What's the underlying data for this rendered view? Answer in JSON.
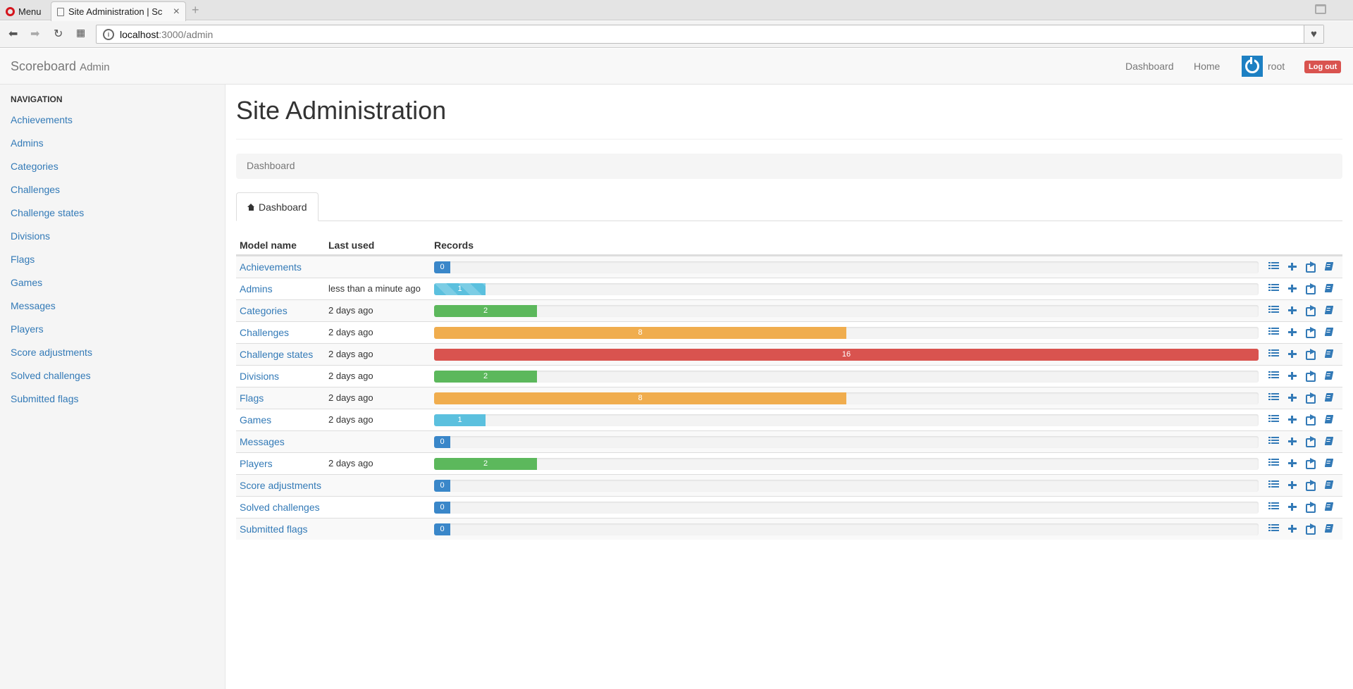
{
  "browser": {
    "menu_label": "Menu",
    "tab_title": "Site Administration | Sc",
    "url_host": "localhost",
    "url_path": ":3000/admin"
  },
  "navbar": {
    "brand": "Scoreboard",
    "brand_sub": "Admin",
    "links": [
      "Dashboard",
      "Home"
    ],
    "user": "root",
    "logout": "Log out"
  },
  "sidebar": {
    "heading": "NAVIGATION",
    "items": [
      "Achievements",
      "Admins",
      "Categories",
      "Challenges",
      "Challenge states",
      "Divisions",
      "Flags",
      "Games",
      "Messages",
      "Players",
      "Score adjustments",
      "Solved challenges",
      "Submitted flags"
    ]
  },
  "main": {
    "title": "Site Administration",
    "breadcrumb": "Dashboard",
    "tab": "Dashboard",
    "columns": [
      "Model name",
      "Last used",
      "Records"
    ]
  },
  "colors": {
    "blue": "#3a87c9",
    "lightblue": "#5bc0de",
    "green": "#5cb85c",
    "orange": "#f0ad4e",
    "red": "#d9534f",
    "link": "#337ab7"
  },
  "records_max": 16,
  "rows": [
    {
      "name": "Achievements",
      "last_used": "",
      "records": 0,
      "color": "blue",
      "striped": false
    },
    {
      "name": "Admins",
      "last_used": "less than a minute ago",
      "records": 1,
      "color": "lightblue",
      "striped": true
    },
    {
      "name": "Categories",
      "last_used": "2 days ago",
      "records": 2,
      "color": "green",
      "striped": false
    },
    {
      "name": "Challenges",
      "last_used": "2 days ago",
      "records": 8,
      "color": "orange",
      "striped": false
    },
    {
      "name": "Challenge states",
      "last_used": "2 days ago",
      "records": 16,
      "color": "red",
      "striped": false
    },
    {
      "name": "Divisions",
      "last_used": "2 days ago",
      "records": 2,
      "color": "green",
      "striped": false
    },
    {
      "name": "Flags",
      "last_used": "2 days ago",
      "records": 8,
      "color": "orange",
      "striped": false
    },
    {
      "name": "Games",
      "last_used": "2 days ago",
      "records": 1,
      "color": "lightblue",
      "striped": false
    },
    {
      "name": "Messages",
      "last_used": "",
      "records": 0,
      "color": "blue",
      "striped": false
    },
    {
      "name": "Players",
      "last_used": "2 days ago",
      "records": 2,
      "color": "green",
      "striped": false
    },
    {
      "name": "Score adjustments",
      "last_used": "",
      "records": 0,
      "color": "blue",
      "striped": false
    },
    {
      "name": "Solved challenges",
      "last_used": "",
      "records": 0,
      "color": "blue",
      "striped": false
    },
    {
      "name": "Submitted flags",
      "last_used": "",
      "records": 0,
      "color": "blue",
      "striped": false
    }
  ],
  "row_action_icons": [
    "list-icon",
    "plus-icon",
    "export-icon",
    "book-icon"
  ]
}
